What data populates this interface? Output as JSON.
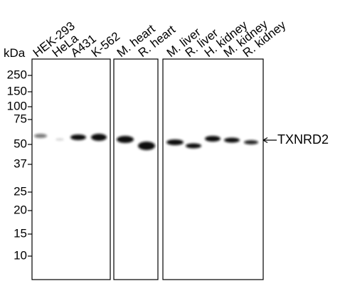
{
  "unit_label": "kDa",
  "lanes": [
    "HEK-293",
    "HeLa",
    "A431",
    "K-562",
    "M. heart",
    "R. heart",
    "M. liver",
    "R. liver",
    "H. kidney",
    "M. kidney",
    "R. kidney"
  ],
  "markers": [
    "250",
    "150",
    "100",
    "75",
    "50",
    "37",
    "25",
    "20",
    "15",
    "10"
  ],
  "target": "TXNRD2"
}
